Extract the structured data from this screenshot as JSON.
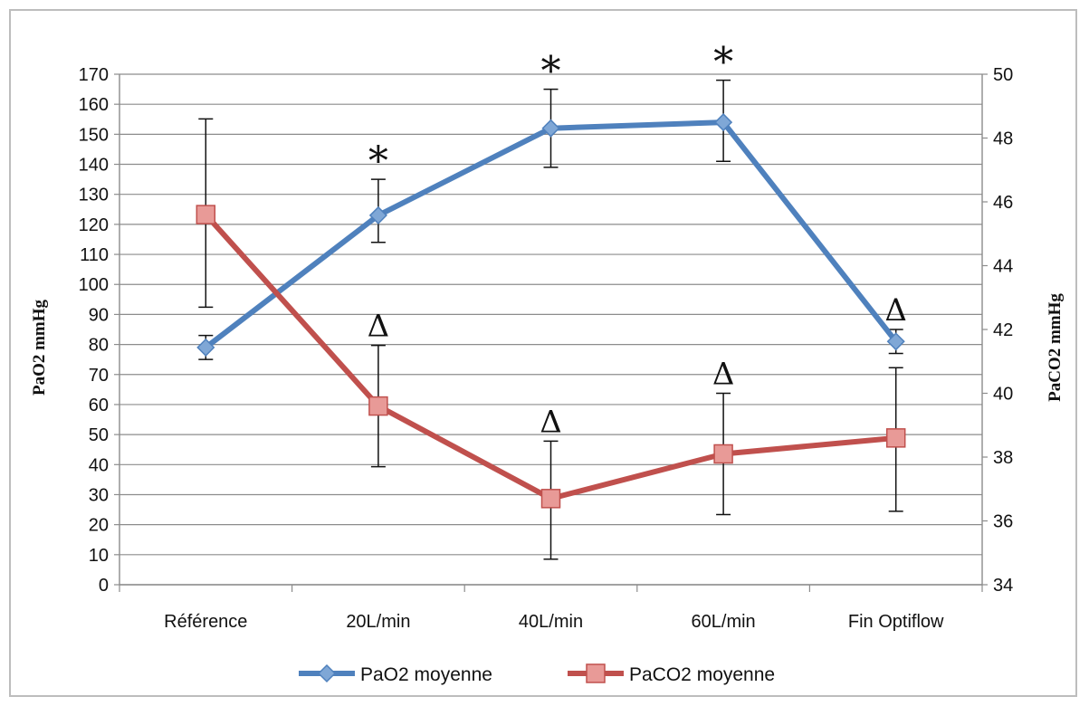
{
  "chart_data": {
    "type": "line",
    "categories": [
      "Référence",
      "20L/min",
      "40L/min",
      "60L/min",
      "Fin Optiflow"
    ],
    "y_left": {
      "label": "PaO2 mmHg",
      "range": [
        0,
        170
      ],
      "step": 10
    },
    "y_right": {
      "label": "PaCO2 mmHg",
      "range": [
        34,
        50
      ],
      "step": 2
    },
    "grid": true,
    "legend_position": "bottom",
    "series": [
      {
        "name": "PaO2 moyenne",
        "axis": "left",
        "color": "#4f81bd",
        "marker": "diamond",
        "values": [
          79,
          123,
          152,
          154,
          81
        ],
        "error": [
          {
            "low": 75,
            "high": 83
          },
          {
            "low": 114,
            "high": 135
          },
          {
            "low": 139,
            "high": 165
          },
          {
            "low": 141,
            "high": 168
          },
          {
            "low": 77,
            "high": 85
          }
        ]
      },
      {
        "name": "PaCO2 moyenne",
        "axis": "right",
        "color": "#c0504d",
        "marker": "square",
        "values": [
          45.6,
          39.6,
          36.7,
          38.1,
          38.6
        ],
        "error": [
          {
            "low": 42.7,
            "high": 48.6
          },
          {
            "low": 37.7,
            "high": 41.5
          },
          {
            "low": 34.8,
            "high": 38.5
          },
          {
            "low": 36.2,
            "high": 40.0
          },
          {
            "low": 36.3,
            "high": 40.8
          }
        ]
      }
    ],
    "annotations": [
      {
        "text": "*",
        "category": 1,
        "axis": "left",
        "at": 135
      },
      {
        "text": "*",
        "category": 2,
        "axis": "left",
        "at": 165
      },
      {
        "text": "*",
        "category": 3,
        "axis": "left",
        "at": 168
      },
      {
        "text": "Δ",
        "category": 1,
        "axis": "right",
        "at": 41.5
      },
      {
        "text": "Δ",
        "category": 2,
        "axis": "right",
        "at": 38.5
      },
      {
        "text": "Δ",
        "category": 3,
        "axis": "right",
        "at": 40.0
      },
      {
        "text": "Δ",
        "category": 4,
        "axis": "left",
        "at": 85
      }
    ]
  }
}
